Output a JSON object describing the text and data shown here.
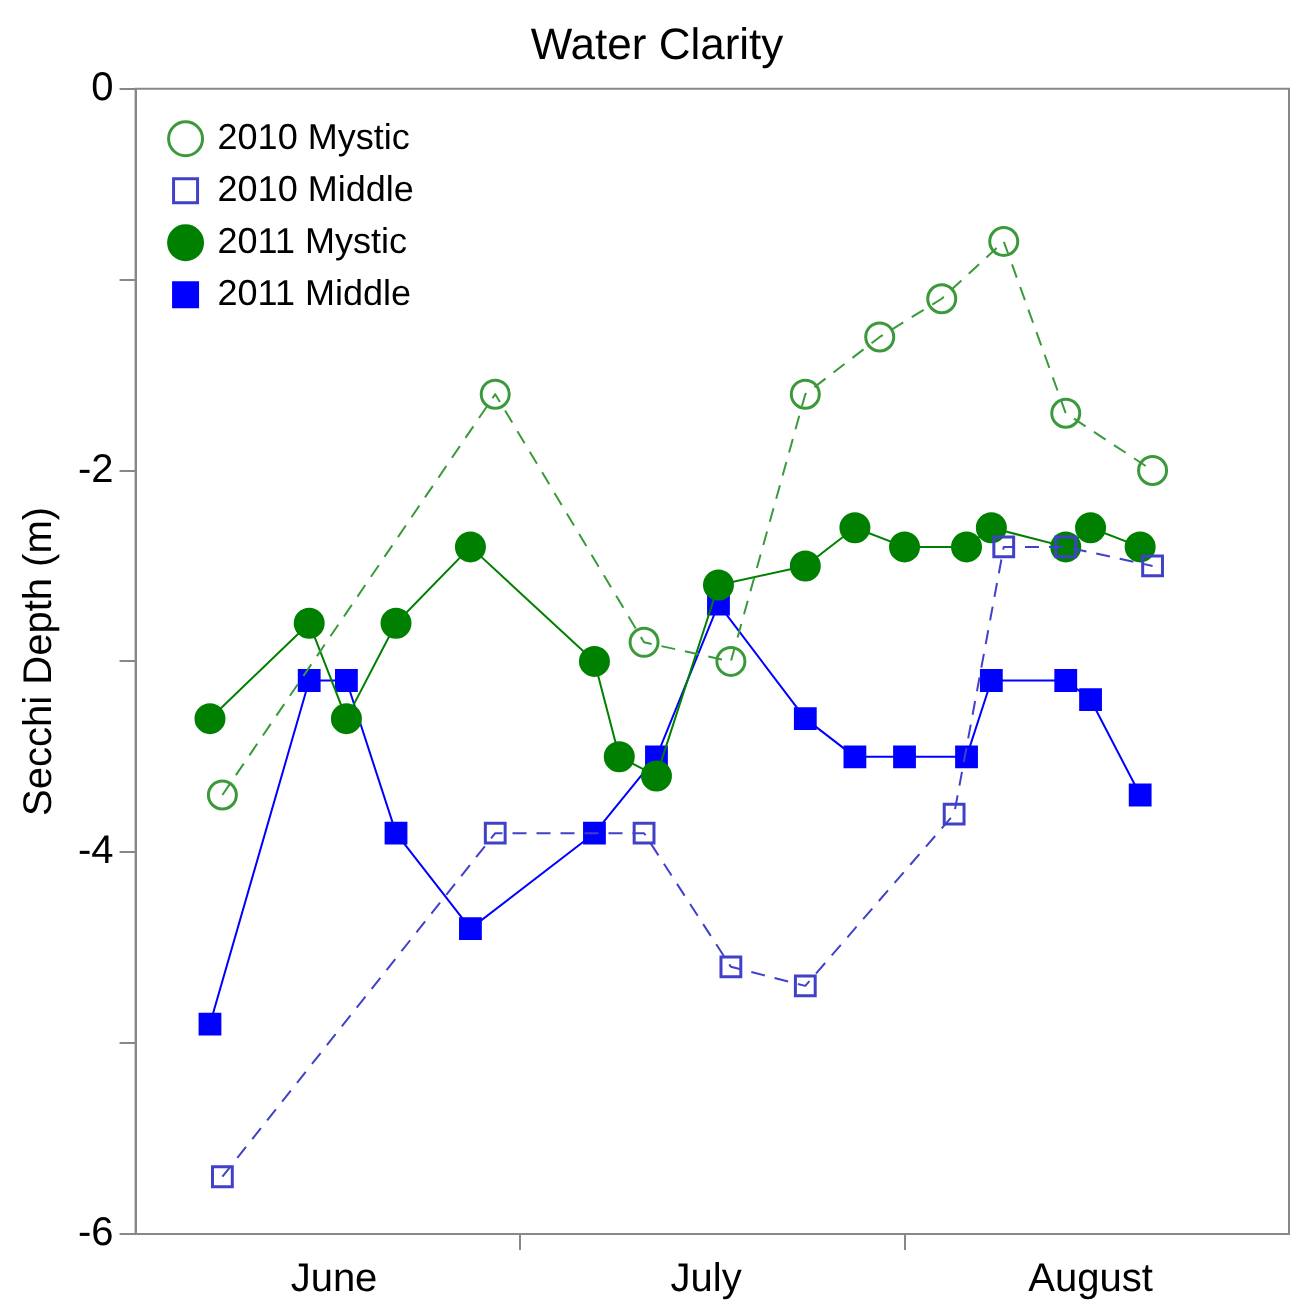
{
  "chart_data": {
    "type": "line",
    "title": "Water Clarity",
    "ylabel": "Secchi Depth (m)",
    "xlim": [
      "--05-31",
      "--09-01"
    ],
    "ylim": [
      -6,
      0
    ],
    "xticks": [
      {
        "value": "--06-16",
        "label": "June"
      },
      {
        "value": "--07-01",
        "label": null
      },
      {
        "value": "--07-16",
        "label": "July"
      },
      {
        "value": "--08-01",
        "label": null
      },
      {
        "value": "--08-16",
        "label": "August"
      }
    ],
    "yticks": [
      -6,
      {
        "value": -5,
        "label": null
      },
      -4,
      {
        "value": -3,
        "label": null
      },
      -2,
      {
        "value": -1,
        "label": null
      },
      0
    ],
    "grid": false,
    "legend": "top left",
    "series": [
      {
        "name": "2010 Mystic",
        "color": "#3a9a3a",
        "marker": "circle",
        "line_style": "dashed",
        "x": [
          "--06-07",
          "--06-29",
          "--07-11",
          "--07-18",
          "--07-24",
          "--07-30",
          "--08-04",
          "--08-09",
          "--08-14",
          "--08-21"
        ],
        "values": [
          -3.7,
          -1.6,
          -2.9,
          -3.0,
          -1.6,
          -1.3,
          -1.1,
          -0.8,
          -1.7,
          -2.0
        ]
      },
      {
        "name": "2010 Middle",
        "color": "#4040c8",
        "marker": "square",
        "line_style": "dashed",
        "x": [
          "--06-07",
          "--06-29",
          "--07-11",
          "--07-18",
          "--07-24",
          "--08-05",
          "--08-09",
          "--08-14",
          "--08-21"
        ],
        "values": [
          -5.7,
          -3.9,
          -3.9,
          -4.6,
          -4.7,
          -3.8,
          -2.4,
          -2.4,
          -2.5
        ]
      },
      {
        "name": "2011 Mystic",
        "color": "#008000",
        "marker": "circle",
        "line_style": "solid",
        "x": [
          "--06-06",
          "--06-14",
          "--06-17",
          "--06-21",
          "--06-27",
          "--07-07",
          "--07-09",
          "--07-12",
          "--07-17",
          "--07-24",
          "--07-28",
          "--08-01",
          "--08-06",
          "--08-08",
          "--08-14",
          "--08-16",
          "--08-20"
        ],
        "values": [
          -3.3,
          -2.8,
          -3.3,
          -2.8,
          -2.4,
          -3.0,
          -3.5,
          -3.6,
          -2.6,
          -2.5,
          -2.3,
          -2.4,
          -2.4,
          -2.3,
          -2.4,
          -2.3,
          -2.4
        ]
      },
      {
        "name": "2011 Middle",
        "color": "#0000ff",
        "marker": "square",
        "line_style": "solid",
        "x": [
          "--06-06",
          "--06-14",
          "--06-17",
          "--06-21",
          "--06-27",
          "--07-07",
          "--07-12",
          "--07-17",
          "--07-24",
          "--07-28",
          "--08-01",
          "--08-06",
          "--08-08",
          "--08-14",
          "--08-16",
          "--08-20"
        ],
        "values": [
          -4.9,
          -3.1,
          -3.1,
          -3.9,
          -4.4,
          -3.9,
          -3.5,
          -2.7,
          -3.3,
          -3.5,
          -3.5,
          -3.5,
          -3.1,
          -3.1,
          -3.2,
          -3.7
        ]
      }
    ]
  }
}
